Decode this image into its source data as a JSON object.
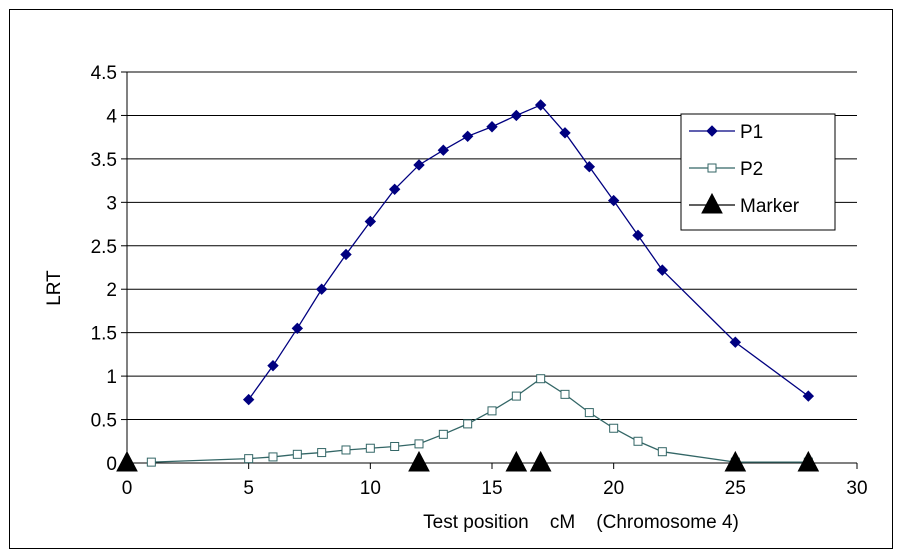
{
  "chart_data": {
    "type": "line",
    "xlabel": "Test position    cM    (Chromosome 4)",
    "ylabel": "LRT",
    "xlim": [
      0,
      30
    ],
    "ylim": [
      0,
      4.5
    ],
    "x_ticks": [
      "0",
      "5",
      "10",
      "15",
      "20",
      "25",
      "30"
    ],
    "y_ticks": [
      "0",
      "0.5",
      "1",
      "1.5",
      "2",
      "2.5",
      "3",
      "3.5",
      "4",
      "4.5"
    ],
    "grid": "horizontal",
    "legend_position": "right",
    "series": [
      {
        "name": "P1",
        "color": "#000080",
        "marker": "diamond-filled",
        "x": [
          5,
          6,
          7,
          8,
          9,
          10,
          11,
          12,
          13,
          14,
          15,
          16,
          17,
          18,
          19,
          20,
          21,
          22,
          25,
          28
        ],
        "y": [
          0.73,
          1.12,
          1.55,
          2.0,
          2.4,
          2.78,
          3.15,
          3.43,
          3.6,
          3.76,
          3.87,
          4.0,
          4.12,
          3.8,
          3.41,
          3.02,
          2.62,
          2.22,
          1.39,
          0.77
        ]
      },
      {
        "name": "P2",
        "color": "#336666",
        "marker": "square-open",
        "x": [
          1,
          5,
          6,
          7,
          8,
          9,
          10,
          11,
          12,
          13,
          14,
          15,
          16,
          17,
          18,
          19,
          20,
          21,
          22,
          25,
          28
        ],
        "y": [
          0.01,
          0.05,
          0.07,
          0.1,
          0.12,
          0.15,
          0.17,
          0.19,
          0.22,
          0.33,
          0.45,
          0.6,
          0.77,
          0.97,
          0.79,
          0.58,
          0.4,
          0.25,
          0.13,
          0.01,
          0.01
        ]
      },
      {
        "name": "Marker",
        "color": "#000000",
        "marker": "triangle-filled",
        "line": false,
        "x": [
          0,
          12,
          16,
          17,
          25,
          28
        ],
        "y": [
          0,
          0,
          0,
          0,
          0,
          0
        ]
      }
    ]
  }
}
